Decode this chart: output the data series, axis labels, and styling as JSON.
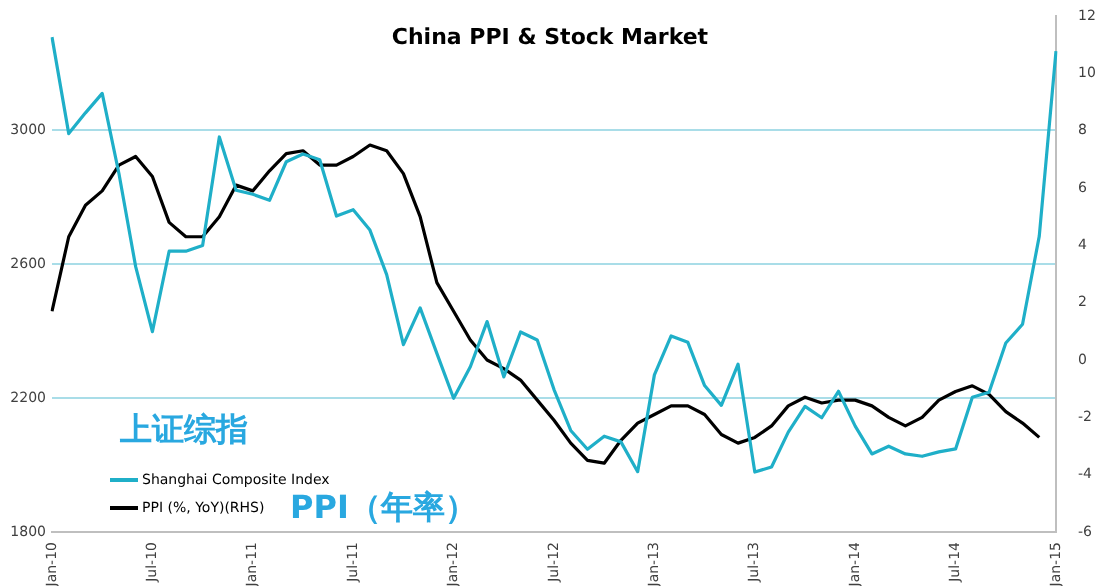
{
  "chart_data": {
    "type": "line",
    "title": "China PPI & Stock Market",
    "categories": [
      "Jan-10",
      null,
      null,
      null,
      null,
      null,
      "Jul-10",
      null,
      null,
      null,
      null,
      null,
      "Jan-11",
      null,
      null,
      null,
      null,
      null,
      "Jul-11",
      null,
      null,
      null,
      null,
      null,
      "Jan-12",
      null,
      null,
      null,
      null,
      null,
      "Jul-12",
      null,
      null,
      null,
      null,
      null,
      "Jan-13",
      null,
      null,
      null,
      null,
      null,
      "Jul-13",
      null,
      null,
      null,
      null,
      null,
      "Jan-14",
      null,
      null,
      null,
      null,
      null,
      "Jul-14",
      null,
      null,
      null,
      null,
      null,
      "Jan-15"
    ],
    "series": [
      {
        "name": "Shanghai Composite Index",
        "color": "#1fafc8",
        "values": [
          3277,
          2989,
          3051,
          3109,
          2870,
          2592,
          2398,
          2638,
          2638,
          2655,
          2979,
          2820,
          2808,
          2790,
          2905,
          2928,
          2911,
          2743,
          2762,
          2701,
          2568,
          2359,
          2469,
          2333,
          2199,
          2293,
          2428,
          2263,
          2397,
          2373,
          2225,
          2103,
          2047,
          2086,
          2069,
          1980,
          2269,
          2385,
          2366,
          2237,
          2178,
          2301,
          1979,
          1994,
          2098,
          2175,
          2141,
          2220,
          2116,
          2033,
          2056,
          2033,
          2026,
          2039,
          2048,
          2202,
          2217,
          2364,
          2420,
          2683,
          3235
        ]
      },
      {
        "name": "PPI (%, YoY)(RHS)",
        "color": "#000000",
        "axis": "y2",
        "values": [
          1.7,
          4.3,
          5.4,
          5.9,
          6.8,
          7.1,
          6.4,
          4.8,
          4.3,
          4.3,
          5.0,
          6.1,
          5.9,
          6.6,
          7.2,
          7.3,
          6.8,
          6.8,
          7.1,
          7.5,
          7.3,
          6.5,
          5.0,
          2.7,
          1.7,
          0.7,
          0.0,
          -0.3,
          -0.7,
          -1.4,
          -2.1,
          -2.9,
          -3.5,
          -3.6,
          -2.8,
          -2.2,
          -1.9,
          -1.6,
          -1.6,
          -1.9,
          -2.6,
          -2.9,
          -2.7,
          -2.3,
          -1.6,
          -1.3,
          -1.5,
          -1.4,
          -1.4,
          -1.6,
          -2.0,
          -2.3,
          -2.0,
          -1.4,
          -1.1,
          -0.9,
          -1.2,
          -1.8,
          -2.2,
          -2.7,
          null
        ]
      }
    ],
    "ylim": [
      1800,
      3340
    ],
    "yticks": [
      1800,
      2200,
      2600,
      3000
    ],
    "y2lim": [
      -6,
      12
    ],
    "y2ticks": [
      -6,
      -4,
      -2,
      0,
      2,
      4,
      6,
      8,
      10,
      12
    ],
    "grid": "y",
    "legend": "bottom left",
    "marker": "none",
    "line_style": "solid",
    "annotations": [
      "上证综指",
      "PPI（年率）"
    ]
  }
}
